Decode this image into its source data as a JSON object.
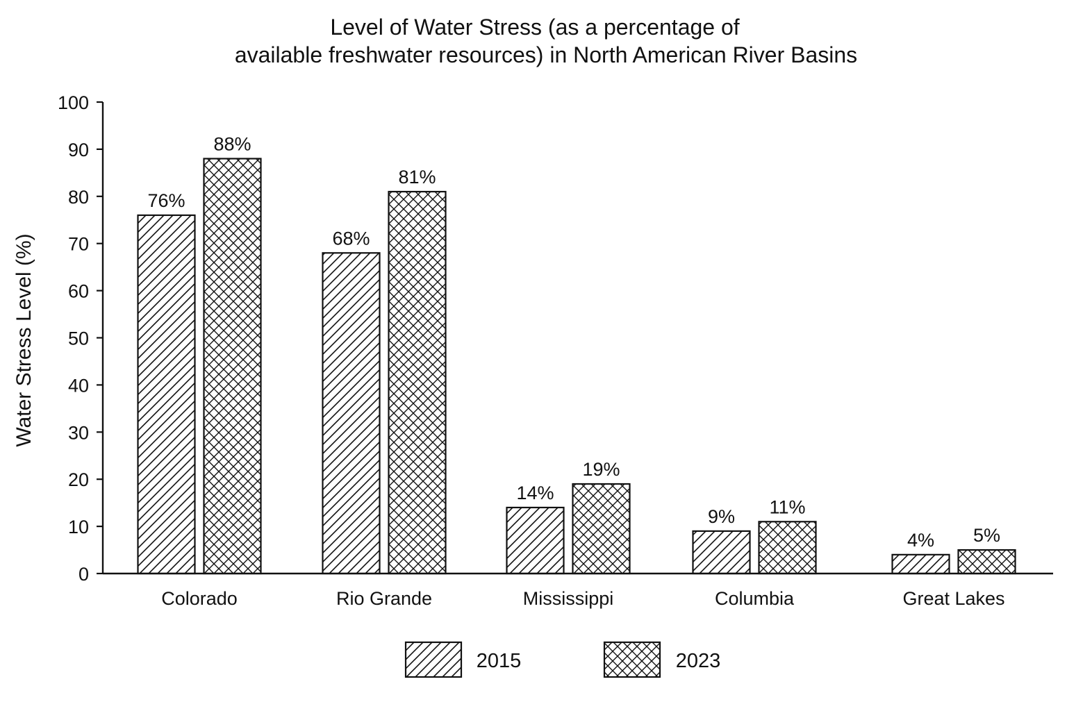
{
  "chart_data": {
    "type": "bar",
    "title_lines": [
      "Level of Water Stress (as a percentage of",
      "available freshwater resources) in North American River Basins"
    ],
    "xlabel": "",
    "ylabel": "Water Stress Level (%)",
    "ylim": [
      0,
      100
    ],
    "yticks": [
      0,
      10,
      20,
      30,
      40,
      50,
      60,
      70,
      80,
      90,
      100
    ],
    "categories": [
      "Colorado",
      "Rio Grande",
      "Mississippi",
      "Columbia",
      "Great Lakes"
    ],
    "series": [
      {
        "name": "2015",
        "pattern": "diagonal-hatch",
        "values": [
          76,
          68,
          14,
          9,
          4
        ],
        "labels": [
          "76%",
          "68%",
          "14%",
          "9%",
          "4%"
        ]
      },
      {
        "name": "2023",
        "pattern": "crosshatch",
        "values": [
          88,
          81,
          19,
          11,
          5
        ],
        "labels": [
          "88%",
          "81%",
          "19%",
          "11%",
          "5%"
        ]
      }
    ],
    "grid": false,
    "legend_position": "bottom-center",
    "colors": {
      "ink": "#111111",
      "background": "#ffffff"
    }
  }
}
